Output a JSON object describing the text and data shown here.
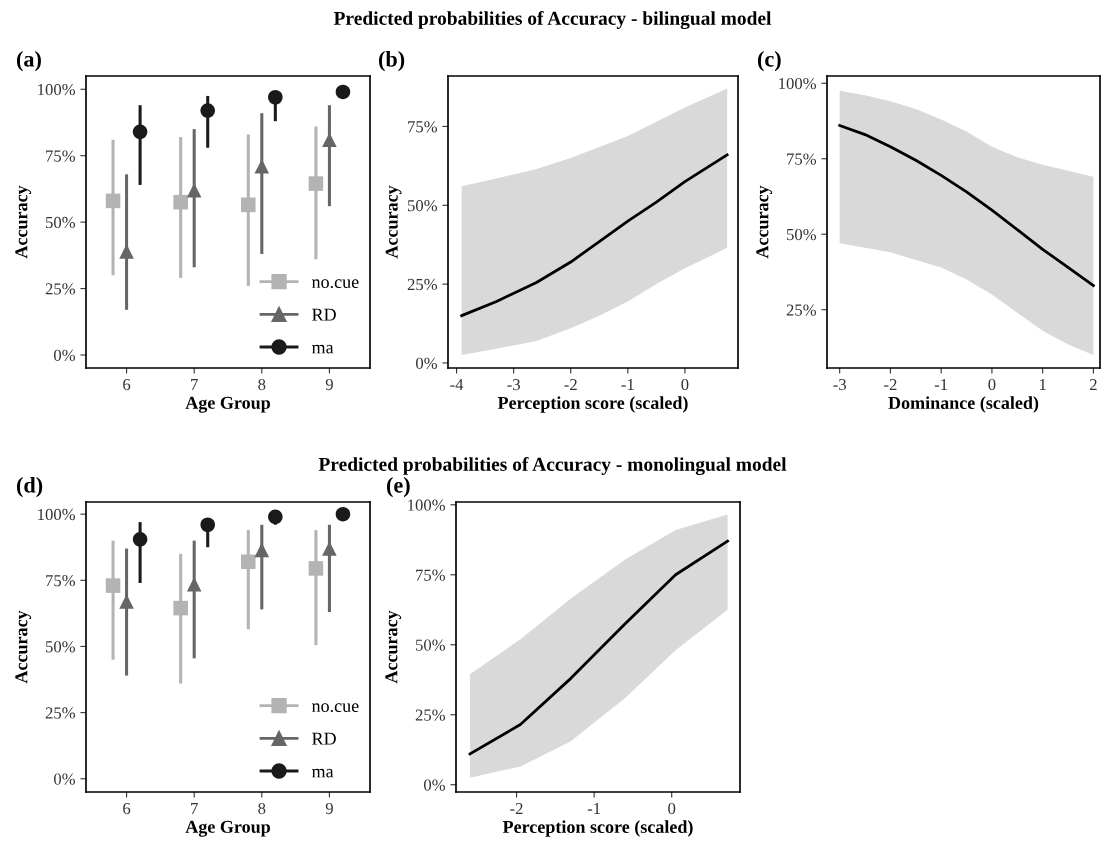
{
  "chart_data": [
    {
      "type": "scatter",
      "title": "(a)",
      "annotations": [
        "Predicted probabilities of Accuracy - bilingual model"
      ],
      "xlabel": "Age Group",
      "ylabel": "Accuracy",
      "categories": [
        "6",
        "7",
        "8",
        "9"
      ],
      "series": [
        {
          "name": "no.cue",
          "color": "#b3b3b3",
          "marker": "square",
          "values": [
            58,
            57.5,
            56.5,
            64.5
          ],
          "errors": [
            [
              30,
              81
            ],
            [
              29,
              82
            ],
            [
              26,
              83
            ],
            [
              36,
              86
            ]
          ]
        },
        {
          "name": "RD",
          "color": "#666666",
          "marker": "triangle",
          "values": [
            39,
            62,
            71,
            81
          ],
          "errors": [
            [
              17,
              68
            ],
            [
              33,
              85
            ],
            [
              38,
              91
            ],
            [
              56,
              94
            ]
          ]
        },
        {
          "name": "ma",
          "color": "#1a1a1a",
          "marker": "circle",
          "values": [
            84,
            92,
            97,
            99
          ],
          "errors": [
            [
              64,
              94
            ],
            [
              78,
              97.5
            ],
            [
              88,
              97
            ],
            [
              97,
              99
            ]
          ]
        }
      ],
      "ylim": [
        -4.9,
        105
      ],
      "yticks": [
        {
          "value": 0,
          "label": "0%"
        },
        {
          "value": 25,
          "label": "25%"
        },
        {
          "value": 50,
          "label": "50%"
        },
        {
          "value": 75,
          "label": "75%"
        },
        {
          "value": 100,
          "label": "100%"
        }
      ],
      "legend": "bottom right",
      "grid": false
    },
    {
      "type": "line",
      "title": "(b)",
      "xlabel": "Perception score (scaled)",
      "ylabel": "Accuracy",
      "series": [
        {
          "color": "#000000",
          "x": [
            -3.91,
            -3.3,
            -2.6,
            -2,
            -1.5,
            -1,
            -0.5,
            0,
            0.74
          ],
          "values": [
            15,
            19.5,
            25.5,
            32,
            38.5,
            45,
            51,
            57.5,
            66
          ],
          "lower": [
            2.5,
            4.5,
            7,
            11,
            15,
            19.5,
            25,
            30,
            36.5
          ],
          "upper": [
            56,
            58.5,
            61.5,
            65,
            68.5,
            72,
            76.5,
            81,
            87
          ]
        }
      ],
      "xlim": [
        -4.15,
        0.93
      ],
      "xticks": [
        -4,
        -3,
        -2,
        -1,
        0
      ],
      "ylim": [
        -1.6,
        91
      ],
      "yticks": [
        {
          "value": 0,
          "label": "0%"
        },
        {
          "value": 25,
          "label": "25%"
        },
        {
          "value": 50,
          "label": "50%"
        },
        {
          "value": 75,
          "label": "75%"
        }
      ],
      "grid": false
    },
    {
      "type": "line",
      "title": "(c)",
      "xlabel": "Dominance (scaled)",
      "ylabel": "Accuracy",
      "series": [
        {
          "color": "#000000",
          "x": [
            -3,
            -2.5,
            -2,
            -1.5,
            -1,
            -0.5,
            0,
            0.5,
            1,
            1.5,
            2
          ],
          "values": [
            86,
            83,
            79,
            74.5,
            69.5,
            64,
            58,
            51.5,
            45,
            39,
            33
          ],
          "lower": [
            47,
            45.5,
            44,
            41.5,
            39,
            35,
            30,
            24,
            18,
            13.5,
            10
          ],
          "upper": [
            97.5,
            96,
            94,
            91.5,
            88,
            84,
            79,
            75.5,
            73,
            71,
            69
          ]
        }
      ],
      "xlim": [
        -3.25,
        2.13
      ],
      "xticks": [
        -3,
        -2,
        -1,
        0,
        1,
        2
      ],
      "ylim": [
        5.7,
        102.4
      ],
      "yticks": [
        {
          "value": 25,
          "label": "25%"
        },
        {
          "value": 50,
          "label": "50%"
        },
        {
          "value": 75,
          "label": "75%"
        },
        {
          "value": 100,
          "label": "100%"
        }
      ],
      "grid": false
    },
    {
      "type": "scatter",
      "title": "(d)",
      "annotations": [
        "Predicted probabilities of Accuracy - monolingual model"
      ],
      "xlabel": "Age Group",
      "ylabel": "Accuracy",
      "categories": [
        "6",
        "7",
        "8",
        "9"
      ],
      "series": [
        {
          "name": "no.cue",
          "color": "#b3b3b3",
          "marker": "square",
          "values": [
            73,
            64.5,
            82,
            79.5
          ],
          "errors": [
            [
              45,
              90
            ],
            [
              36,
              85
            ],
            [
              56.5,
              94
            ],
            [
              50.5,
              94
            ]
          ]
        },
        {
          "name": "RD",
          "color": "#666666",
          "marker": "triangle",
          "values": [
            67,
            73.5,
            86.5,
            87
          ],
          "errors": [
            [
              39,
              87
            ],
            [
              45.5,
              90
            ],
            [
              64,
              96
            ],
            [
              63,
              96
            ]
          ]
        },
        {
          "name": "ma",
          "color": "#1a1a1a",
          "marker": "circle",
          "values": [
            90.5,
            96,
            99,
            100
          ],
          "errors": [
            [
              74,
              97
            ],
            [
              87.5,
              98
            ],
            [
              96,
              99
            ],
            null
          ]
        }
      ],
      "ylim": [
        -5,
        104.6
      ],
      "yticks": [
        {
          "value": 0,
          "label": "0%"
        },
        {
          "value": 25,
          "label": "25%"
        },
        {
          "value": 50,
          "label": "50%"
        },
        {
          "value": 75,
          "label": "75%"
        },
        {
          "value": 100,
          "label": "100%"
        }
      ],
      "legend": "bottom right",
      "grid": false
    },
    {
      "type": "line",
      "title": "(e)",
      "xlabel": "Perception score (scaled)",
      "ylabel": "Accuracy",
      "series": [
        {
          "color": "#000000",
          "x": [
            -2.6,
            -1.95,
            -1.3,
            -0.6,
            0.05,
            0.72
          ],
          "values": [
            11,
            21.5,
            38,
            57.5,
            75,
            87
          ],
          "lower": [
            2.5,
            6.5,
            15.5,
            31,
            48,
            62.5
          ],
          "upper": [
            39.5,
            52,
            66.5,
            80.5,
            91,
            96.5
          ]
        }
      ],
      "xlim": [
        -2.78,
        0.88
      ],
      "xticks": [
        -2,
        -1,
        0
      ],
      "ylim": [
        -2.6,
        101
      ],
      "yticks": [
        {
          "value": 0,
          "label": "0%"
        },
        {
          "value": 25,
          "label": "25%"
        },
        {
          "value": 50,
          "label": "50%"
        },
        {
          "value": 75,
          "label": "75%"
        },
        {
          "value": 100,
          "label": "100%"
        }
      ],
      "grid": false
    }
  ]
}
